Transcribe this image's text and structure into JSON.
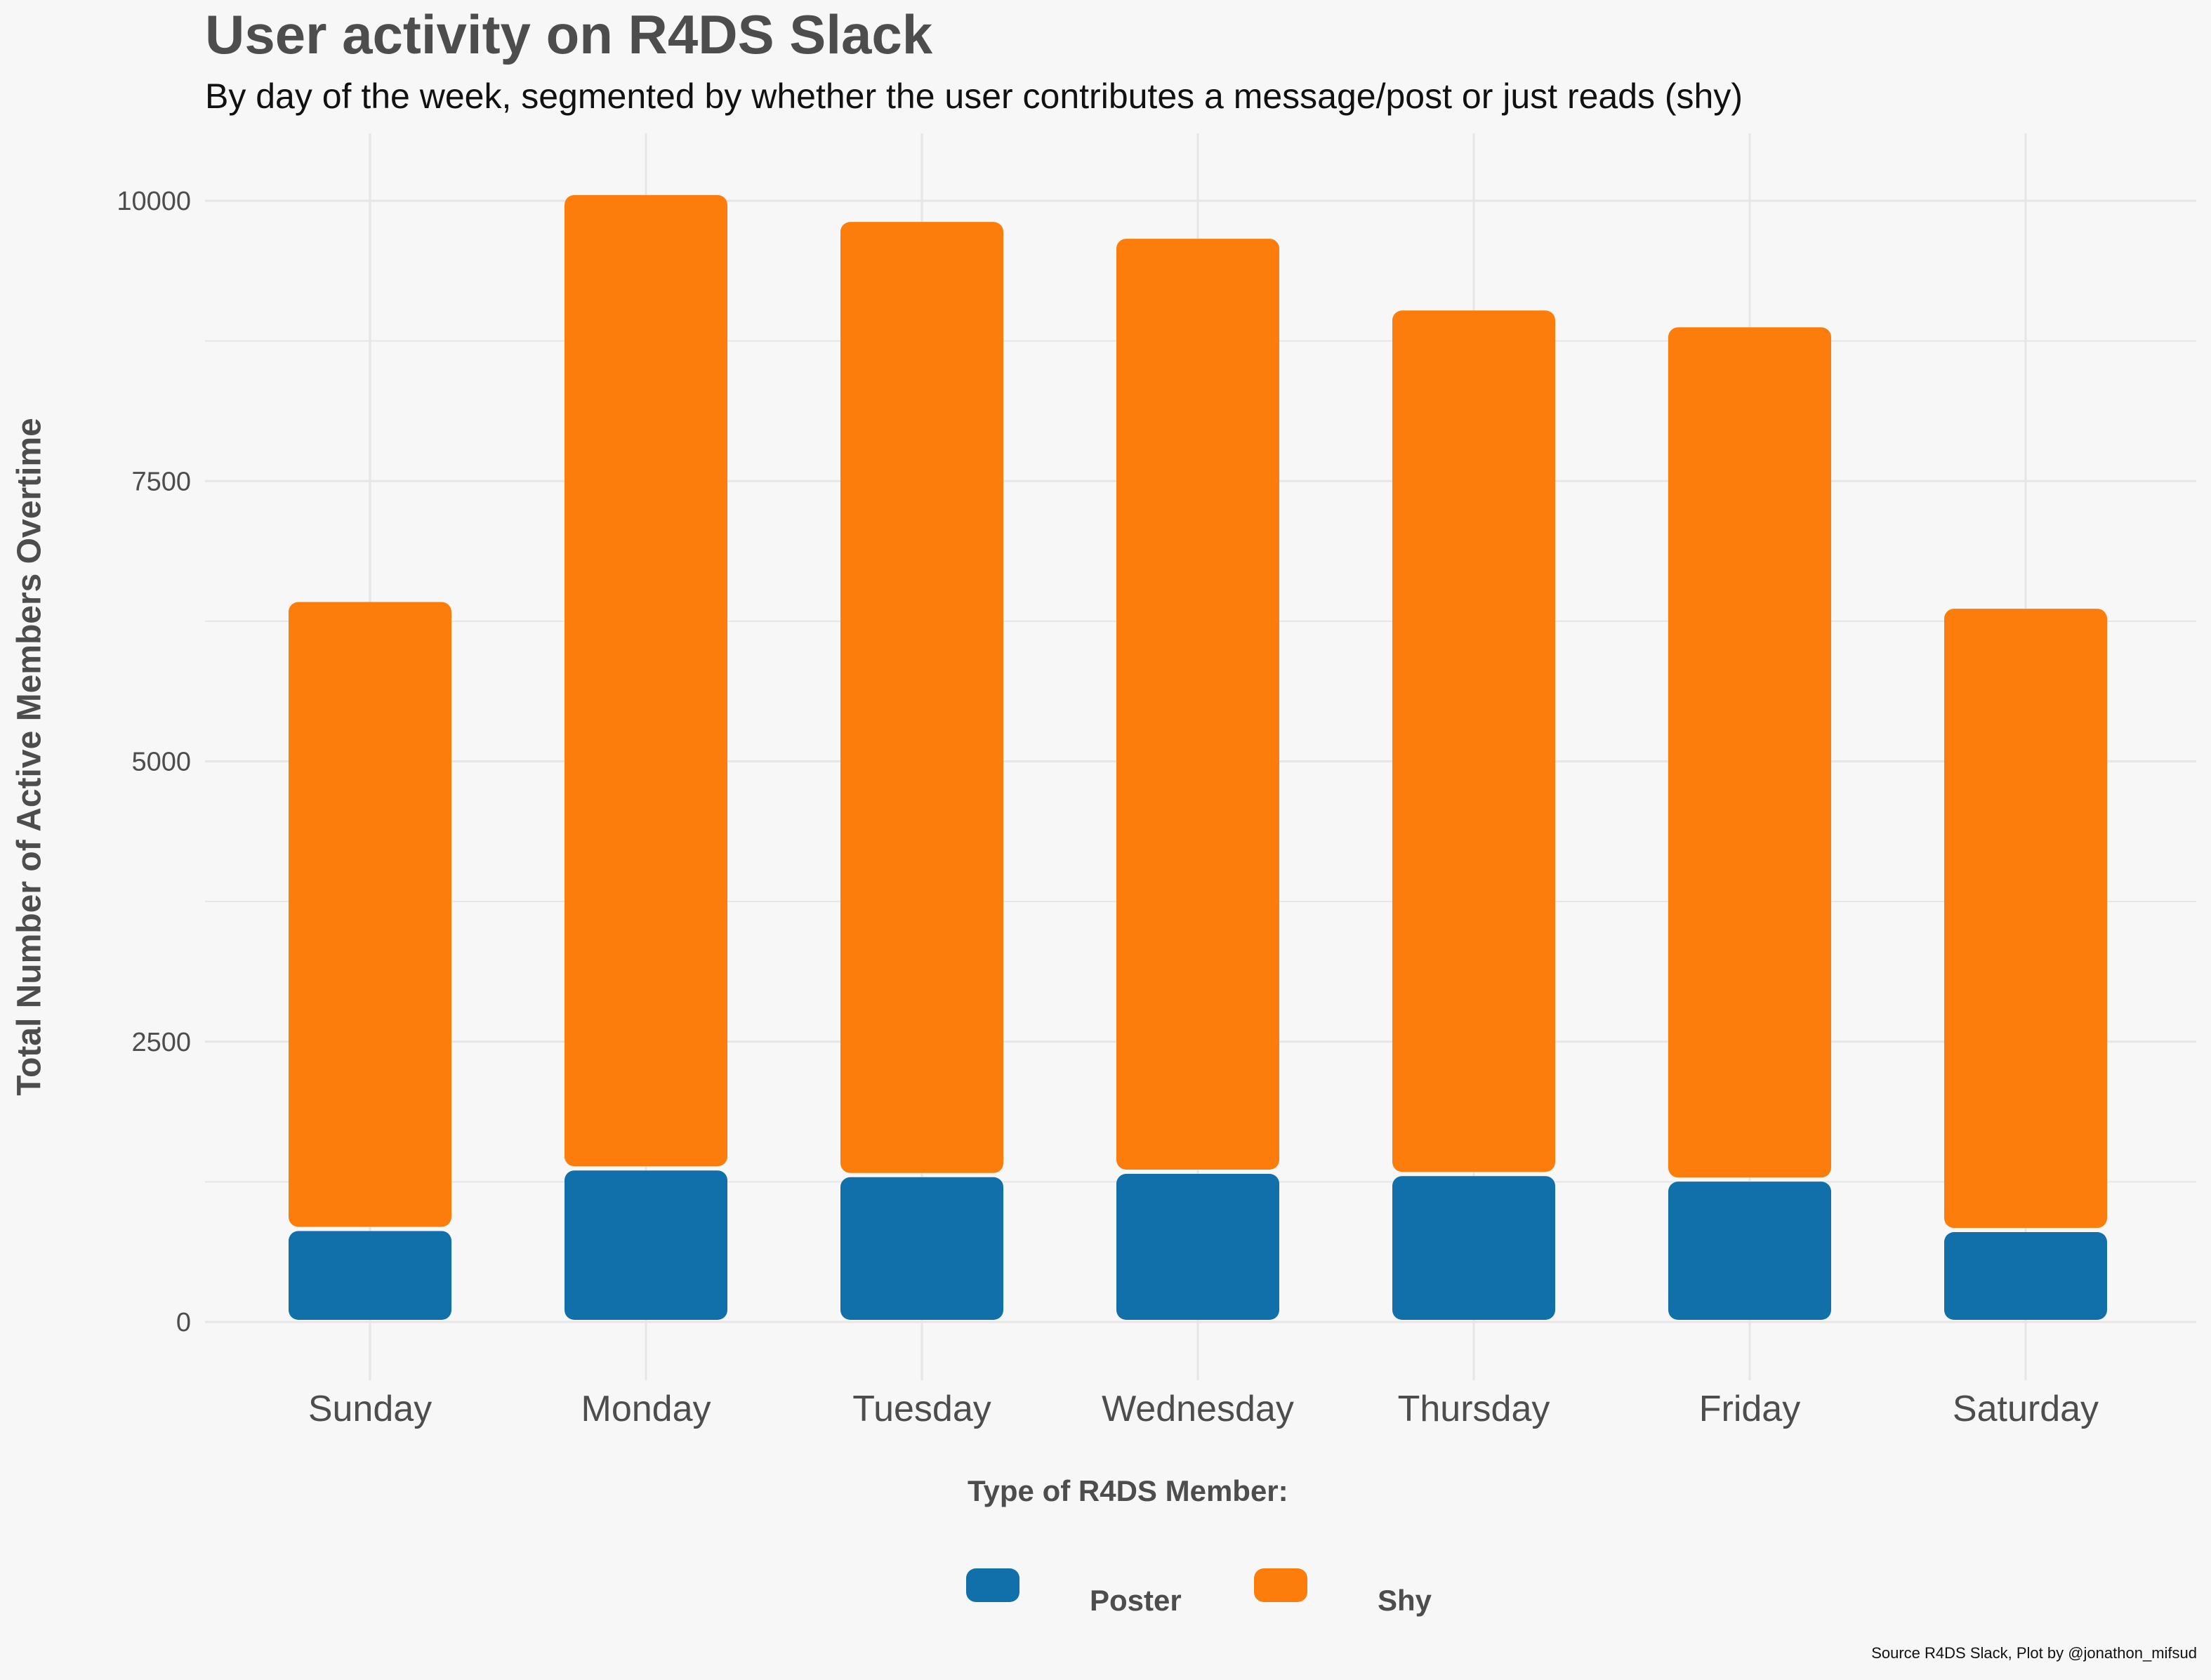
{
  "colors": {
    "background": "#f7f7f7",
    "grid": "#e6e6e6",
    "poster": "#1170aa",
    "shy": "#fc7d0b",
    "text": "#4d4d4d"
  },
  "chart_data": {
    "type": "bar",
    "stacked": true,
    "title": "User activity on R4DS Slack",
    "subtitle": "By day of the week, segmented by whether the user contributes a message/post or just reads (shy)",
    "xlabel": "",
    "ylabel": "Total Number of Active Members Overtime",
    "ylim": [
      0,
      10500
    ],
    "yticks": [
      0,
      2500,
      5000,
      7500,
      10000
    ],
    "ytick_labels": [
      "0",
      "2500",
      "5000",
      "7500",
      "10000"
    ],
    "grid": true,
    "categories": [
      "Sunday",
      "Monday",
      "Tuesday",
      "Wednesday",
      "Thursday",
      "Friday",
      "Saturday"
    ],
    "series": [
      {
        "name": "Poster",
        "color": "#1170aa",
        "values": [
          830,
          1370,
          1310,
          1340,
          1320,
          1270,
          820
        ]
      },
      {
        "name": "Shy",
        "color": "#fc7d0b",
        "values": [
          5610,
          8700,
          8520,
          8340,
          7720,
          7620,
          5560
        ]
      }
    ],
    "legend": {
      "title": "Type of R4DS Member:",
      "position": "bottom"
    },
    "caption": "Source R4DS Slack, Plot by @jonathon_mifsud"
  }
}
